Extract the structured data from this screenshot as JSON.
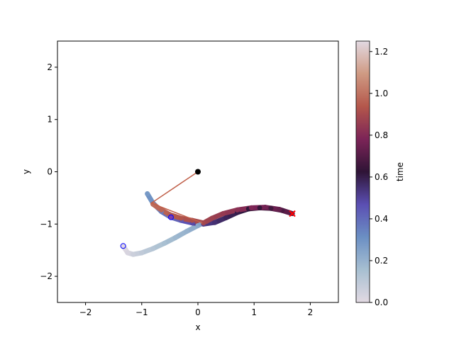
{
  "chart_data": {
    "type": "scatter",
    "xlabel": "x",
    "ylabel": "y",
    "colorbar_label": "time",
    "xlim": [
      -2.5,
      2.5
    ],
    "ylim": [
      -2.5,
      2.5
    ],
    "xticks": [
      {
        "value": -2,
        "label": "−2"
      },
      {
        "value": -1,
        "label": "−1"
      },
      0,
      1,
      2
    ],
    "yticks": [
      {
        "value": -2,
        "label": "−2"
      },
      {
        "value": -1,
        "label": "−1"
      },
      0,
      1,
      2
    ],
    "clim": [
      0,
      1.25
    ],
    "cticks": [
      {
        "value": 0,
        "label": "0.0"
      },
      0.2,
      0.4,
      0.6,
      0.8,
      {
        "value": 1,
        "label": "1.0"
      },
      1.2
    ],
    "x": [
      -1.33,
      -1.25,
      -1.15,
      -1.0,
      -0.8,
      -0.6,
      -0.4,
      -0.2,
      0.0,
      0.05,
      -0.9,
      -0.8,
      -0.65,
      -0.48,
      -0.3,
      -0.1,
      0.1,
      0.3,
      0.5,
      0.7,
      0.9,
      1.1,
      1.3,
      1.5,
      1.68,
      1.45,
      1.2,
      0.95,
      0.7,
      0.45,
      0.25,
      0.1,
      -0.1,
      -0.3,
      -0.5,
      -0.65,
      -0.8
    ],
    "y": [
      -1.42,
      -1.55,
      -1.58,
      -1.55,
      -1.47,
      -1.37,
      -1.26,
      -1.14,
      -1.03,
      -1.0,
      -0.42,
      -0.6,
      -0.76,
      -0.87,
      -0.93,
      -0.98,
      -1.0,
      -0.97,
      -0.88,
      -0.78,
      -0.71,
      -0.69,
      -0.7,
      -0.74,
      -0.8,
      -0.72,
      -0.68,
      -0.69,
      -0.73,
      -0.8,
      -0.89,
      -0.98,
      -0.93,
      -0.89,
      -0.82,
      -0.73,
      -0.62
    ],
    "t": [
      0.0,
      0.03,
      0.06,
      0.09,
      0.12,
      0.15,
      0.18,
      0.2,
      0.23,
      0.25,
      0.28,
      0.32,
      0.36,
      0.4,
      0.44,
      0.48,
      0.52,
      0.55,
      0.58,
      0.6,
      0.62,
      0.64,
      0.66,
      0.68,
      0.7,
      0.73,
      0.76,
      0.79,
      0.82,
      0.85,
      0.87,
      0.89,
      0.91,
      0.93,
      0.95,
      0.97,
      0.99
    ],
    "rod": {
      "x": [
        0,
        -0.83,
        0.08
      ],
      "y": [
        0,
        -0.6,
        -0.98
      ]
    },
    "pivot": {
      "x": 0,
      "y": 0
    },
    "start": {
      "x": -1.33,
      "y": -1.42
    },
    "mid": {
      "x": -0.48,
      "y": -0.87
    },
    "end": {
      "x": 1.68,
      "y": -0.8
    }
  }
}
